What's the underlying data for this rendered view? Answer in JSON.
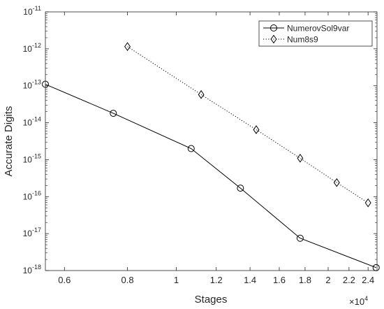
{
  "chart_data": {
    "type": "line",
    "title": "",
    "xlabel": "Stages",
    "ylabel": "Accurate Digits",
    "xscale": "log",
    "yscale": "log",
    "xlim": [
      5500,
      25000
    ],
    "ylim": [
      1e-18,
      1e-11
    ],
    "x_exponent_label": "×10",
    "x_exponent_power": "4",
    "x_ticks": [
      {
        "value": 6000,
        "label": "0.6"
      },
      {
        "value": 8000,
        "label": "0.8"
      },
      {
        "value": 10000,
        "label": "1"
      },
      {
        "value": 12000,
        "label": "1.2"
      },
      {
        "value": 14000,
        "label": "1.4"
      },
      {
        "value": 16000,
        "label": "1.6"
      },
      {
        "value": 18000,
        "label": "1.8"
      },
      {
        "value": 20000,
        "label": "2"
      },
      {
        "value": 22000,
        "label": "2.2"
      },
      {
        "value": 24000,
        "label": "2.4"
      }
    ],
    "y_ticks": [
      {
        "value": 1e-18,
        "base": "10",
        "exp": "-18"
      },
      {
        "value": 1e-17,
        "base": "10",
        "exp": "-17"
      },
      {
        "value": 1e-16,
        "base": "10",
        "exp": "-16"
      },
      {
        "value": 1e-15,
        "base": "10",
        "exp": "-15"
      },
      {
        "value": 1e-14,
        "base": "10",
        "exp": "-14"
      },
      {
        "value": 1e-13,
        "base": "10",
        "exp": "-13"
      },
      {
        "value": 1e-12,
        "base": "10",
        "exp": "-12"
      },
      {
        "value": 1e-11,
        "base": "10",
        "exp": "-11"
      }
    ],
    "grid": false,
    "legend_position": "top-right",
    "series": [
      {
        "name": "NumerovSol9var",
        "color": "#000000",
        "line_style": "solid",
        "marker": "circle",
        "x": [
          5500,
          7500,
          10700,
          13400,
          17600,
          24900
        ],
        "y": [
          1.1e-13,
          1.8e-14,
          2e-15,
          1.7e-16,
          7.5e-18,
          1.2e-18
        ]
      },
      {
        "name": "Num8s9",
        "color": "#000000",
        "line_style": "dotted",
        "marker": "diamond",
        "x": [
          8000,
          11200,
          14400,
          17600,
          20800,
          24000
        ],
        "y": [
          1.15e-12,
          5.8e-14,
          6.5e-15,
          1.1e-15,
          2.4e-16,
          6.8e-17
        ]
      }
    ]
  }
}
